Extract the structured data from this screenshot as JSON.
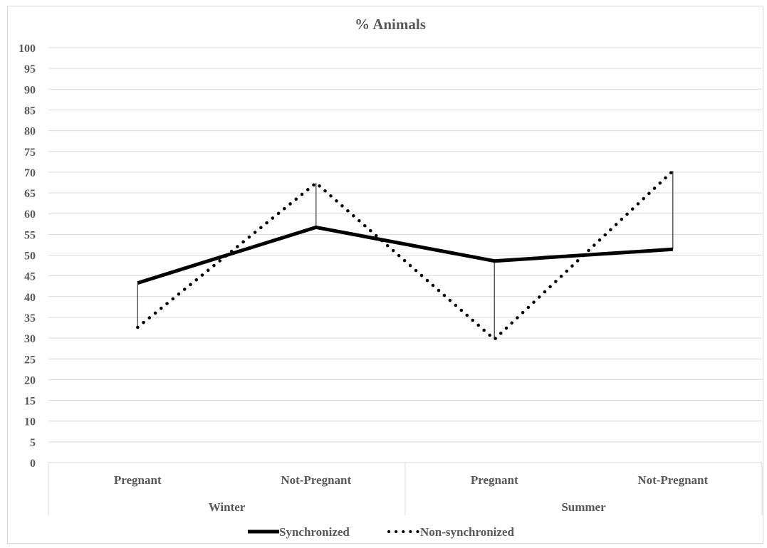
{
  "chart_data": {
    "type": "line",
    "title": "% Animals",
    "xlabel": "",
    "ylabel": "",
    "ylim": [
      0,
      100
    ],
    "y_ticks": [
      "0",
      "5",
      "10",
      "15",
      "20",
      "25",
      "30",
      "35",
      "40",
      "45",
      "50",
      "55",
      "60",
      "65",
      "70",
      "75",
      "80",
      "85",
      "90",
      "95",
      "100"
    ],
    "categories": [
      "Pregnant",
      "Not-Pregnant",
      "Pregnant",
      "Not-Pregnant"
    ],
    "groups": [
      {
        "label": "Winter",
        "span": 2
      },
      {
        "label": "Summer",
        "span": 2
      }
    ],
    "grid": true,
    "high_low_lines": true,
    "legend_position": "bottom",
    "series": [
      {
        "name": "Synchronized",
        "style": "solid",
        "color": "#000000",
        "values": [
          43.3,
          56.7,
          48.6,
          51.4
        ]
      },
      {
        "name": "Non-synchronized",
        "style": "dotted",
        "color": "#000000",
        "values": [
          32.6,
          67.4,
          29.7,
          70.3
        ]
      }
    ]
  }
}
